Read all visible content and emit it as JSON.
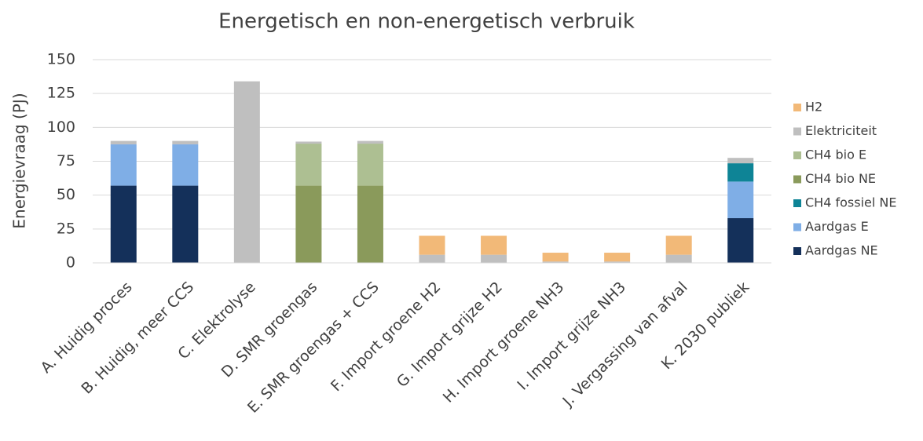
{
  "chart_data": {
    "type": "stacked_bar",
    "title": "Energetisch en non-energetisch verbruik",
    "y_label": "Energievraag (PJ)",
    "categories": [
      "A. Huidig proces",
      "B. Huidig, meer CCS",
      "C. Elektrolyse",
      "D. SMR groengas",
      "E. SMR groengas + CCS",
      "F. Import groene H2",
      "G. Import grijze H2",
      "H. Import groene NH3",
      "I. Import grijze NH3",
      "J. Vergassing van afval",
      "K. 2030 publiek"
    ],
    "series": [
      {
        "name": "Aardgas NE",
        "color": "#14305a",
        "values": [
          57,
          57,
          0,
          0,
          0,
          0,
          0,
          0,
          0,
          0,
          33
        ]
      },
      {
        "name": "Aardgas E",
        "color": "#7faee6",
        "values": [
          30.5,
          30.5,
          0,
          0,
          0,
          0,
          0,
          0,
          0,
          0,
          27
        ]
      },
      {
        "name": "CH4 fossiel NE",
        "color": "#0e8496",
        "values": [
          0,
          0,
          0,
          0,
          0,
          0,
          0,
          0,
          0,
          0,
          13.5
        ]
      },
      {
        "name": "CH4 bio NE",
        "color": "#8a9a5b",
        "values": [
          0,
          0,
          0,
          57,
          57,
          0,
          0,
          0,
          0,
          0,
          0
        ]
      },
      {
        "name": "CH4 bio E",
        "color": "#adbf92",
        "values": [
          0,
          0,
          0,
          31,
          31,
          0,
          0,
          0,
          0,
          0,
          0
        ]
      },
      {
        "name": "Elektriciteit",
        "color": "#bfbfbf",
        "values": [
          2.5,
          2.5,
          134,
          1.5,
          2,
          6,
          6,
          1,
          1,
          6,
          4
        ]
      },
      {
        "name": "H2",
        "color": "#f2b978",
        "values": [
          0,
          0,
          0,
          0,
          0,
          14,
          14,
          6.5,
          6.5,
          14,
          0
        ]
      }
    ],
    "ylim": [
      0,
      150
    ],
    "yticks": [
      0,
      25,
      50,
      75,
      100,
      125,
      150
    ],
    "grid": true,
    "legend": "right"
  }
}
